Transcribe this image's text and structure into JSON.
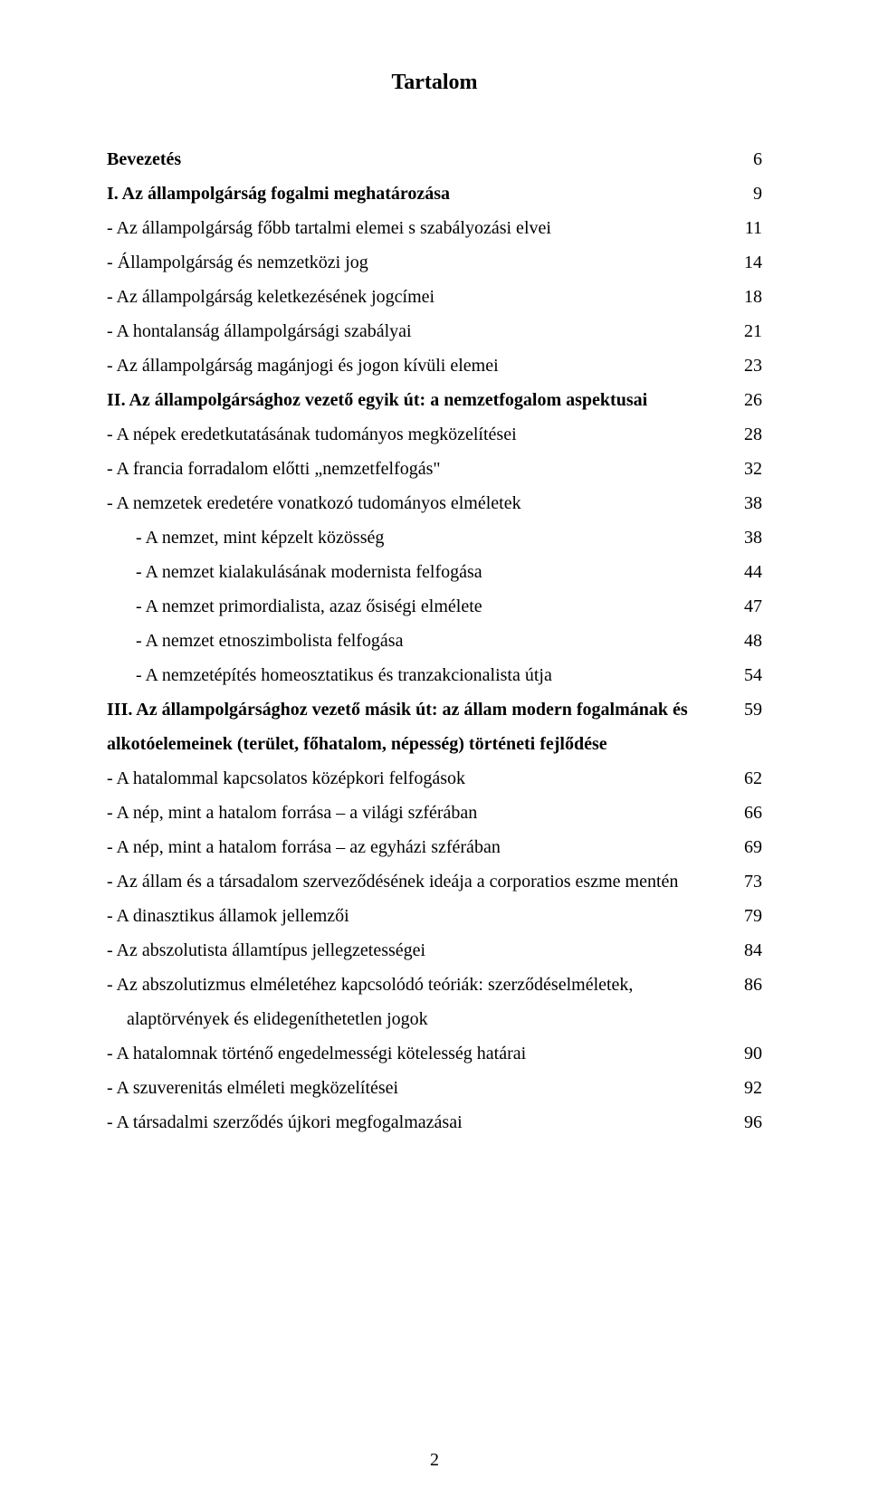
{
  "title": "Tartalom",
  "pageNumber": "2",
  "entries": [
    {
      "text": "Bevezetés",
      "page": "6",
      "bold": true,
      "indent": 0
    },
    {
      "text": "I. Az állampolgárság fogalmi meghatározása",
      "page": "9",
      "bold": true,
      "indent": 0
    },
    {
      "text": "- Az állampolgárság főbb tartalmi elemei s szabályozási elvei",
      "page": "11",
      "bold": false,
      "indent": 0
    },
    {
      "text": "- Állampolgárság és nemzetközi jog",
      "page": "14",
      "bold": false,
      "indent": 0
    },
    {
      "text": "- Az állampolgárság keletkezésének jogcímei",
      "page": "18",
      "bold": false,
      "indent": 0
    },
    {
      "text": "- A hontalanság állampolgársági szabályai",
      "page": "21",
      "bold": false,
      "indent": 0
    },
    {
      "text": "- Az állampolgárság magánjogi és jogon kívüli elemei",
      "page": "23",
      "bold": false,
      "indent": 0
    },
    {
      "text": "II. Az állampolgársághoz vezető egyik út: a nemzetfogalom aspektusai",
      "page": "26",
      "bold": true,
      "indent": 0
    },
    {
      "text": "- A népek eredetkutatásának tudományos megközelítései",
      "page": "28",
      "bold": false,
      "indent": 0
    },
    {
      "text": "- A francia forradalom előtti „nemzetfelfogás\"",
      "page": "32",
      "bold": false,
      "indent": 0
    },
    {
      "text": "- A nemzetek eredetére vonatkozó tudományos elméletek",
      "page": "38",
      "bold": false,
      "indent": 0
    },
    {
      "text": "- A nemzet, mint képzelt közösség",
      "page": "38",
      "bold": false,
      "indent": 1
    },
    {
      "text": "- A nemzet kialakulásának modernista felfogása",
      "page": "44",
      "bold": false,
      "indent": 1
    },
    {
      "text": "- A nemzet primordialista, azaz ősiségi elmélete",
      "page": "47",
      "bold": false,
      "indent": 1
    },
    {
      "text": "- A nemzet etnoszimbolista felfogása",
      "page": "48",
      "bold": false,
      "indent": 1
    },
    {
      "text": "- A nemzetépítés homeosztatikus és tranzakcionalista útja",
      "page": "54",
      "bold": false,
      "indent": 1
    },
    {
      "text": "III. Az állampolgársághoz vezető másik út: az állam modern fogalmának és alkotóelemeinek (terület, főhatalom, népesség) történeti fejlődése",
      "page": "59",
      "bold": true,
      "indent": 0
    },
    {
      "text": "- A hatalommal kapcsolatos középkori felfogások",
      "page": "62",
      "bold": false,
      "indent": 0
    },
    {
      "text": "- A nép, mint a hatalom forrása – a világi szférában",
      "page": "66",
      "bold": false,
      "indent": 0
    },
    {
      "text": "- A nép, mint a hatalom forrása – az egyházi szférában",
      "page": "69",
      "bold": false,
      "indent": 0
    },
    {
      "text": "- Az állam és a társadalom szerveződésének ideája a corporatios eszme mentén",
      "page": "73",
      "bold": false,
      "indent": 0
    },
    {
      "text": "- A dinasztikus államok jellemzői",
      "page": "79",
      "bold": false,
      "indent": 0
    },
    {
      "text": "- Az abszolutista államtípus jellegzetességei",
      "page": "84",
      "bold": false,
      "indent": 0
    },
    {
      "text": "- Az abszolutizmus elméletéhez kapcsolódó teóriák: szerződéselméletek, alaptörvények és elidegeníthetetlen jogok",
      "page": "86",
      "bold": false,
      "indent": 2
    },
    {
      "text": "- A hatalomnak történő engedelmességi kötelesség határai",
      "page": "90",
      "bold": false,
      "indent": 0
    },
    {
      "text": "- A szuverenitás elméleti megközelítései",
      "page": "92",
      "bold": false,
      "indent": 0
    },
    {
      "text": "- A társadalmi szerződés újkori megfogalmazásai",
      "page": "96",
      "bold": false,
      "indent": 0
    }
  ]
}
